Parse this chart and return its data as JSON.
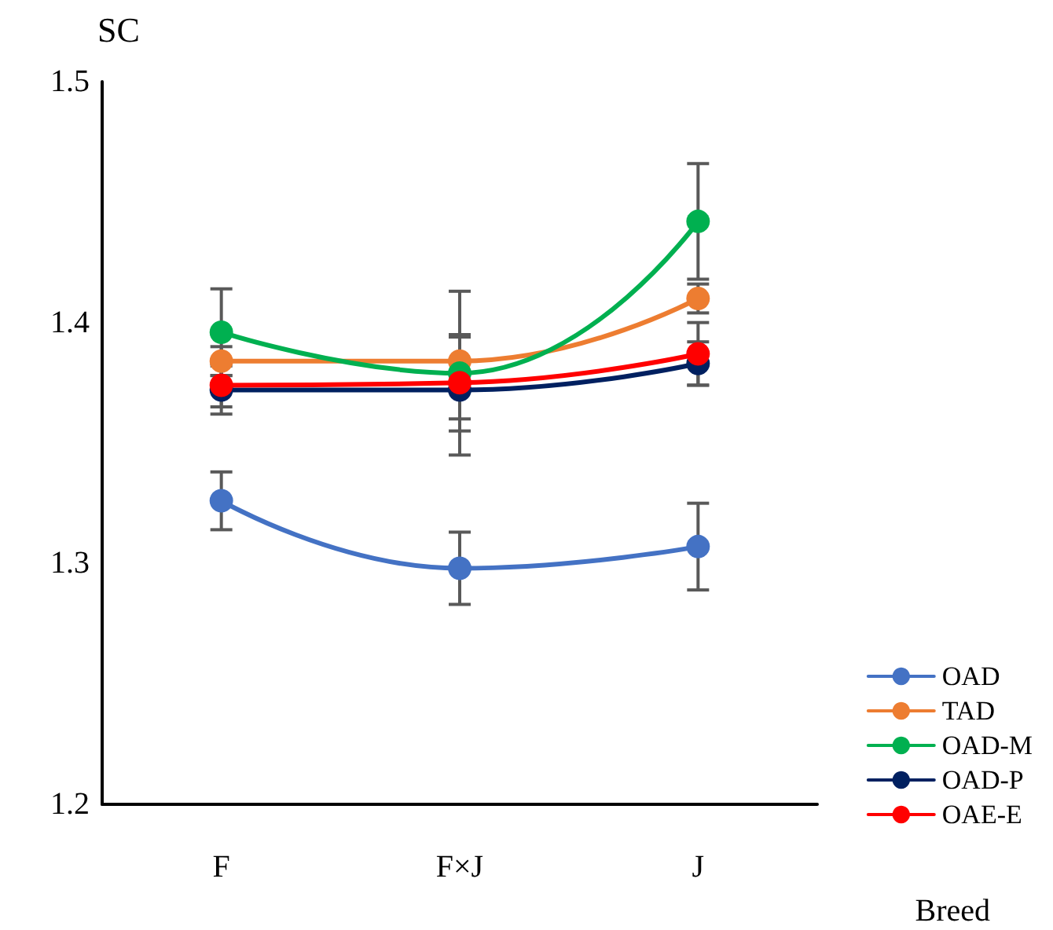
{
  "chart_data": {
    "type": "line",
    "ylabel": "SC",
    "xlabel": "Breed",
    "categories": [
      "F",
      "F×J",
      "J"
    ],
    "ylim": [
      1.2,
      1.5
    ],
    "yticks": [
      1.2,
      1.3,
      1.4,
      1.5
    ],
    "grid": false,
    "legend": "bottom right",
    "marker": "circle",
    "line_style": "solid",
    "series": [
      {
        "name": "OAD",
        "color": "#4472c4",
        "values": [
          1.326,
          1.298,
          1.307
        ],
        "errors": [
          0.012,
          0.015,
          0.018
        ]
      },
      {
        "name": "TAD",
        "color": "#ed7d31",
        "values": [
          1.384,
          1.384,
          1.41
        ],
        "errors": [
          0.006,
          0.01,
          0.006
        ]
      },
      {
        "name": "OAD-M",
        "color": "#00b050",
        "values": [
          1.396,
          1.379,
          1.442
        ],
        "errors": [
          0.018,
          0.034,
          0.024
        ]
      },
      {
        "name": "OAD-P",
        "color": "#002060",
        "values": [
          1.372,
          1.372,
          1.383
        ],
        "errors": [
          0.01,
          0.012,
          0.009
        ]
      },
      {
        "name": "OAE-E",
        "color": "#ff0000",
        "values": [
          1.374,
          1.375,
          1.387
        ],
        "errors": [
          0.009,
          0.02,
          0.013
        ]
      }
    ]
  }
}
